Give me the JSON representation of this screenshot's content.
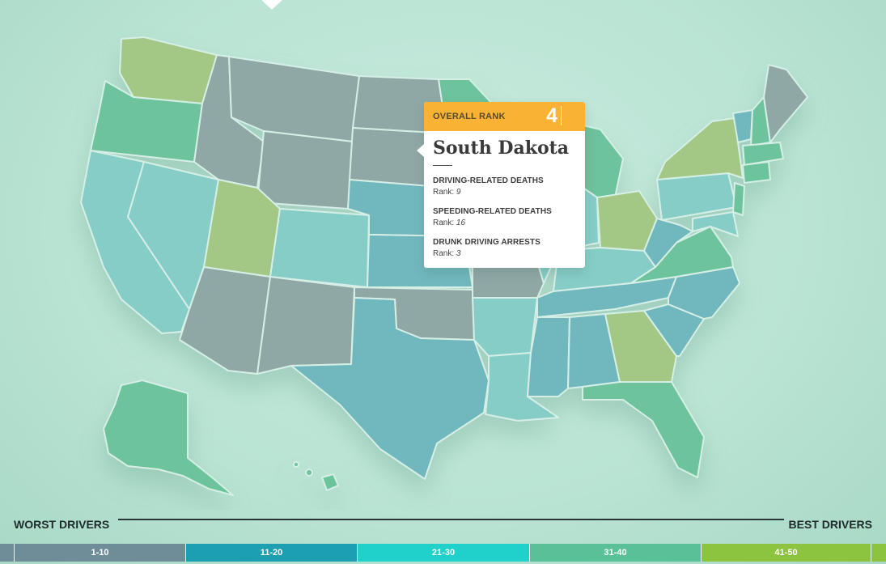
{
  "legend": {
    "worst_label": "WORST DRIVERS",
    "best_label": "BEST DRIVERS",
    "buckets": [
      {
        "label": "1-10",
        "color": "#6e8d99"
      },
      {
        "label": "11-20",
        "color": "#1b9fb1"
      },
      {
        "label": "21-30",
        "color": "#1fd0cb"
      },
      {
        "label": "31-40",
        "color": "#5ac098"
      },
      {
        "label": "41-50",
        "color": "#8dc43f"
      }
    ],
    "edge_left_color": "#6e8d99",
    "edge_right_color": "#8dc43f"
  },
  "tooltip": {
    "rank_label": "OVERALL RANK",
    "rank_value": "4",
    "state_name": "South Dakota",
    "metrics": [
      {
        "title": "DRIVING-RELATED DEATHS",
        "rank_prefix": "Rank:",
        "rank": "9"
      },
      {
        "title": "SPEEDING-RELATED DEATHS",
        "rank_prefix": "Rank:",
        "rank": "16"
      },
      {
        "title": "DRUNK DRIVING ARRESTS",
        "rank_prefix": "Rank:",
        "rank": "3"
      }
    ]
  },
  "map_colors": {
    "bucket_1_10": "#8fa8a6",
    "bucket_11_20": "#6fb8bd",
    "bucket_21_30": "#86cdc8",
    "bucket_31_40": "#6cc39c",
    "bucket_41_50": "#a3c885"
  }
}
